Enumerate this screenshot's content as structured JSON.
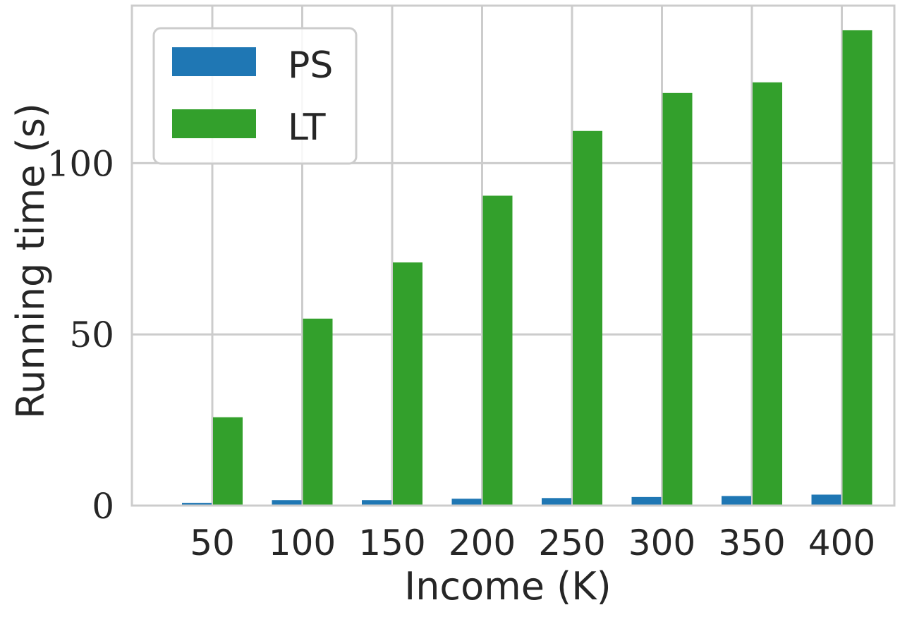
{
  "chart_data": {
    "type": "bar",
    "xlabel": "Income (K)",
    "ylabel": "Running time (s)",
    "categories": [
      "50",
      "100",
      "150",
      "200",
      "250",
      "300",
      "350",
      "400"
    ],
    "series": [
      {
        "name": "PS",
        "color": "#1f77b4",
        "values": [
          0.8,
          1.6,
          1.6,
          2.0,
          2.2,
          2.5,
          2.8,
          3.2
        ]
      },
      {
        "name": "LT",
        "color": "#33a02c",
        "values": [
          25.8,
          54.6,
          71.0,
          90.5,
          109.4,
          120.5,
          123.6,
          138.8
        ]
      }
    ],
    "ylim": [
      0,
      146
    ],
    "yticks": [
      "0",
      "50",
      "100"
    ],
    "grid": true,
    "legend": "top-left"
  }
}
